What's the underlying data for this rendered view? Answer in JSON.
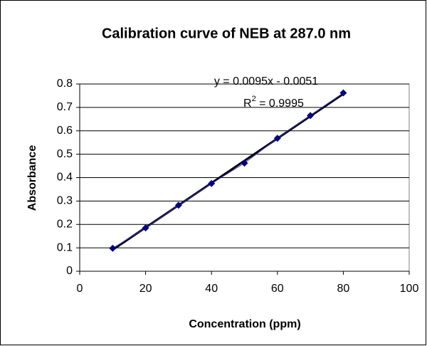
{
  "chart_data": {
    "type": "scatter",
    "title": "Calibration curve of NEB at 287.0 nm",
    "x_label": "Concentration (ppm)",
    "y_label": "Absorbance",
    "series": [
      {
        "name": "NEB",
        "color": "#000080",
        "x": [
          10,
          20,
          30,
          40,
          50,
          60,
          70,
          80
        ],
        "values": [
          0.098,
          0.185,
          0.282,
          0.375,
          0.462,
          0.568,
          0.665,
          0.762
        ]
      }
    ],
    "trendline": {
      "equation": "y = 0.0095x - 0.0051",
      "r_squared": {
        "symbol": "R",
        "exponent": "2",
        "text": " = 0.9995"
      },
      "color": "#000000"
    },
    "xlim": [
      0,
      100
    ],
    "xticks": [
      0,
      20,
      40,
      60,
      80,
      100
    ],
    "ylim": [
      0,
      0.8
    ],
    "yticks": [
      0,
      0.1,
      0.2,
      0.3,
      0.4,
      0.5,
      0.6,
      0.7,
      0.8
    ],
    "grid": true
  }
}
